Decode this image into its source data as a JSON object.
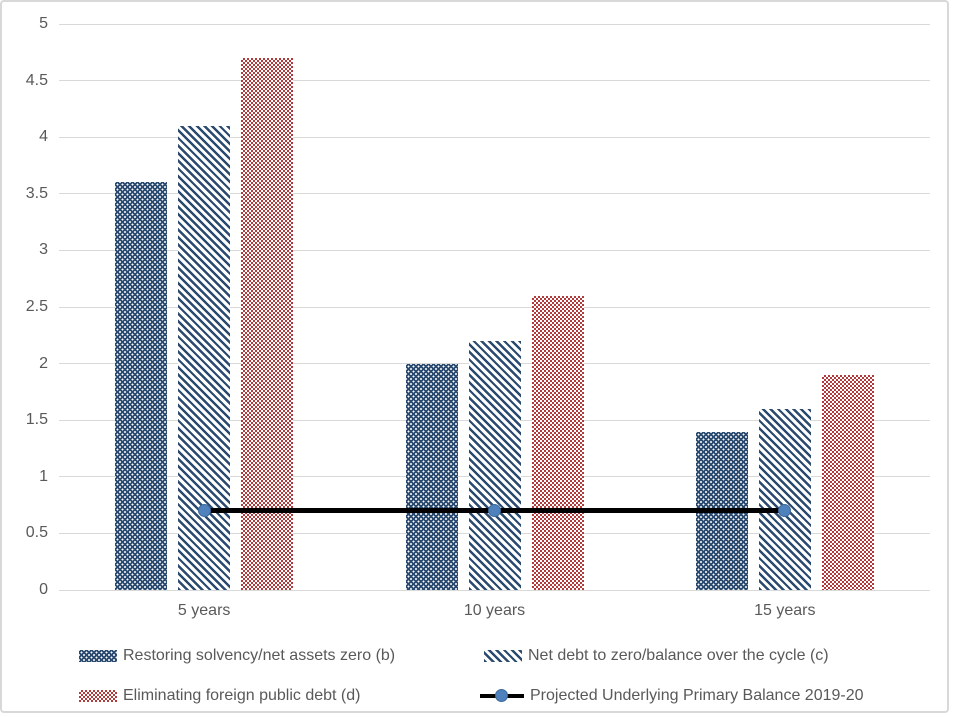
{
  "chart_data": {
    "type": "bar",
    "categories": [
      "5 years",
      "10 years",
      "15 years"
    ],
    "series": [
      {
        "name": "Restoring solvency/net assets zero (b)",
        "values": [
          3.6,
          2.0,
          1.4
        ],
        "pattern": "dots",
        "color": "#2a4a70"
      },
      {
        "name": "Net debt to zero/balance over the cycle (c)",
        "values": [
          4.1,
          2.2,
          1.6
        ],
        "pattern": "diagonal",
        "color": "#2a4a70"
      },
      {
        "name": "Eliminating foreign public debt (d)",
        "values": [
          4.7,
          2.6,
          1.9
        ],
        "pattern": "checker",
        "color": "#b23a3a"
      }
    ],
    "line_series": {
      "name": "Projected Underlying Primary Balance 2019-20",
      "values": [
        0.7,
        0.7,
        0.7
      ],
      "line_color": "#000000",
      "marker_color": "#4f81bd"
    },
    "title": "",
    "xlabel": "",
    "ylabel": "",
    "ylim": [
      0,
      5
    ],
    "yticks": [
      0,
      0.5,
      1,
      1.5,
      2,
      2.5,
      3,
      3.5,
      4,
      4.5,
      5
    ],
    "grid": true,
    "gridline_color": "#d9d9d9",
    "axis_text_color": "#595959",
    "legend_position": "bottom"
  }
}
